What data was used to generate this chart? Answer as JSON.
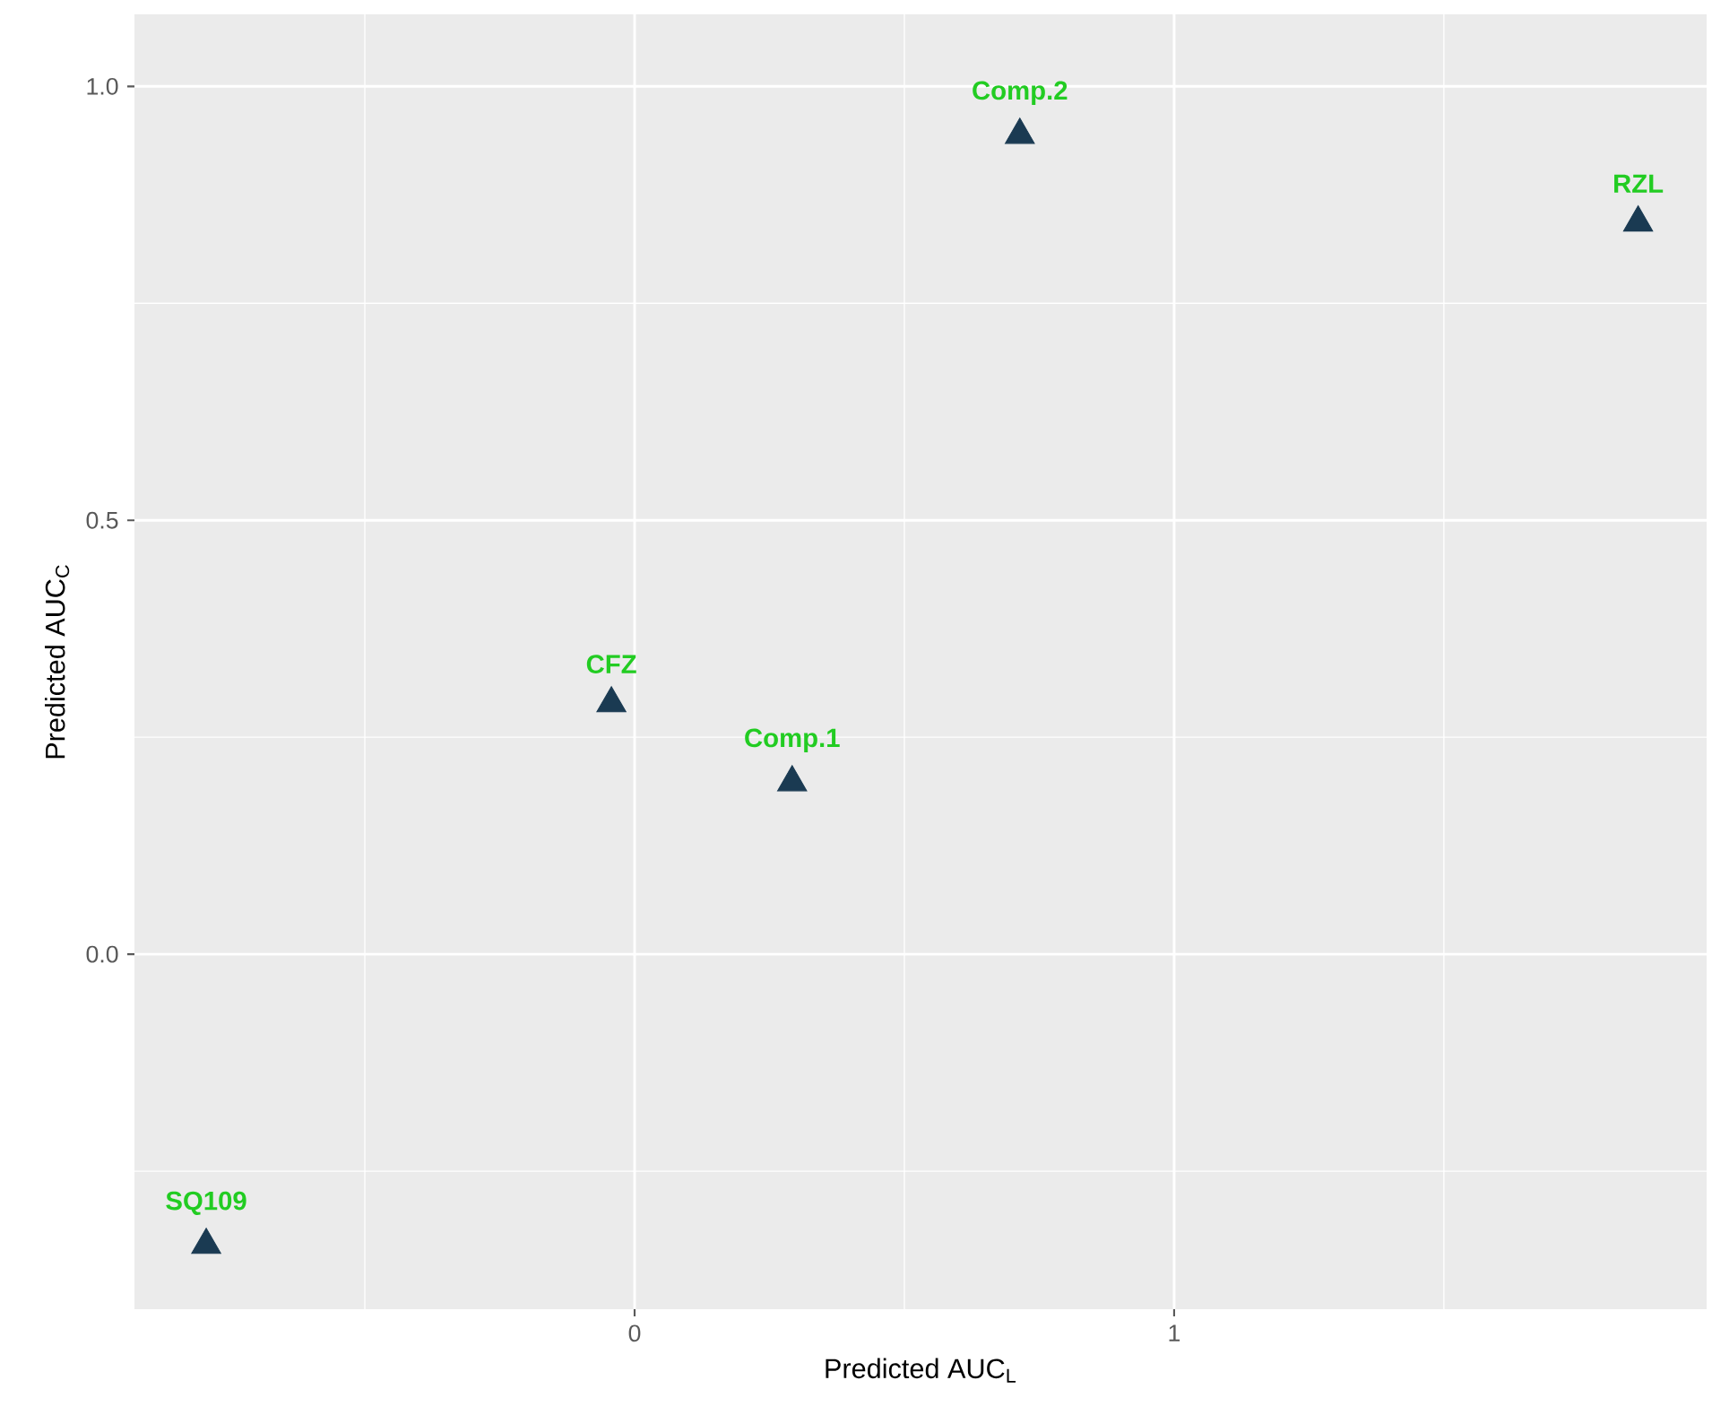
{
  "chart_data": {
    "type": "scatter",
    "xlabel": "Predicted  AUC$_{L}$",
    "ylabel": "Predicted  AUC$_{C}$",
    "x": [
      -0.794,
      -0.043,
      0.292,
      0.714,
      1.86
    ],
    "series": [
      {
        "color": "#1a3a52",
        "values": [
          -0.335,
          0.289,
          0.198,
          0.944,
          0.843
        ]
      }
    ],
    "annotations": [
      {
        "text": "SQ109",
        "x": -0.794,
        "y": -0.335
      },
      {
        "text": "CFZ",
        "x": -0.043,
        "y": 0.289
      },
      {
        "text": "Comp.1",
        "x": 0.292,
        "y": 0.198
      },
      {
        "text": "Comp.2",
        "x": 0.714,
        "y": 0.944
      },
      {
        "text": "RZL",
        "x": 1.86,
        "y": 0.843
      }
    ],
    "xlim": [
      -0.927,
      1.987
    ],
    "ylim": [
      -0.409,
      1.083
    ],
    "xticks": [
      0,
      1
    ],
    "yticks": [
      {
        "value": 0,
        "label": "0.0"
      },
      {
        "value": 0.5,
        "label": "0.5"
      },
      {
        "value": 1,
        "label": "1.0"
      }
    ],
    "grid": true,
    "marker": "triangle"
  }
}
